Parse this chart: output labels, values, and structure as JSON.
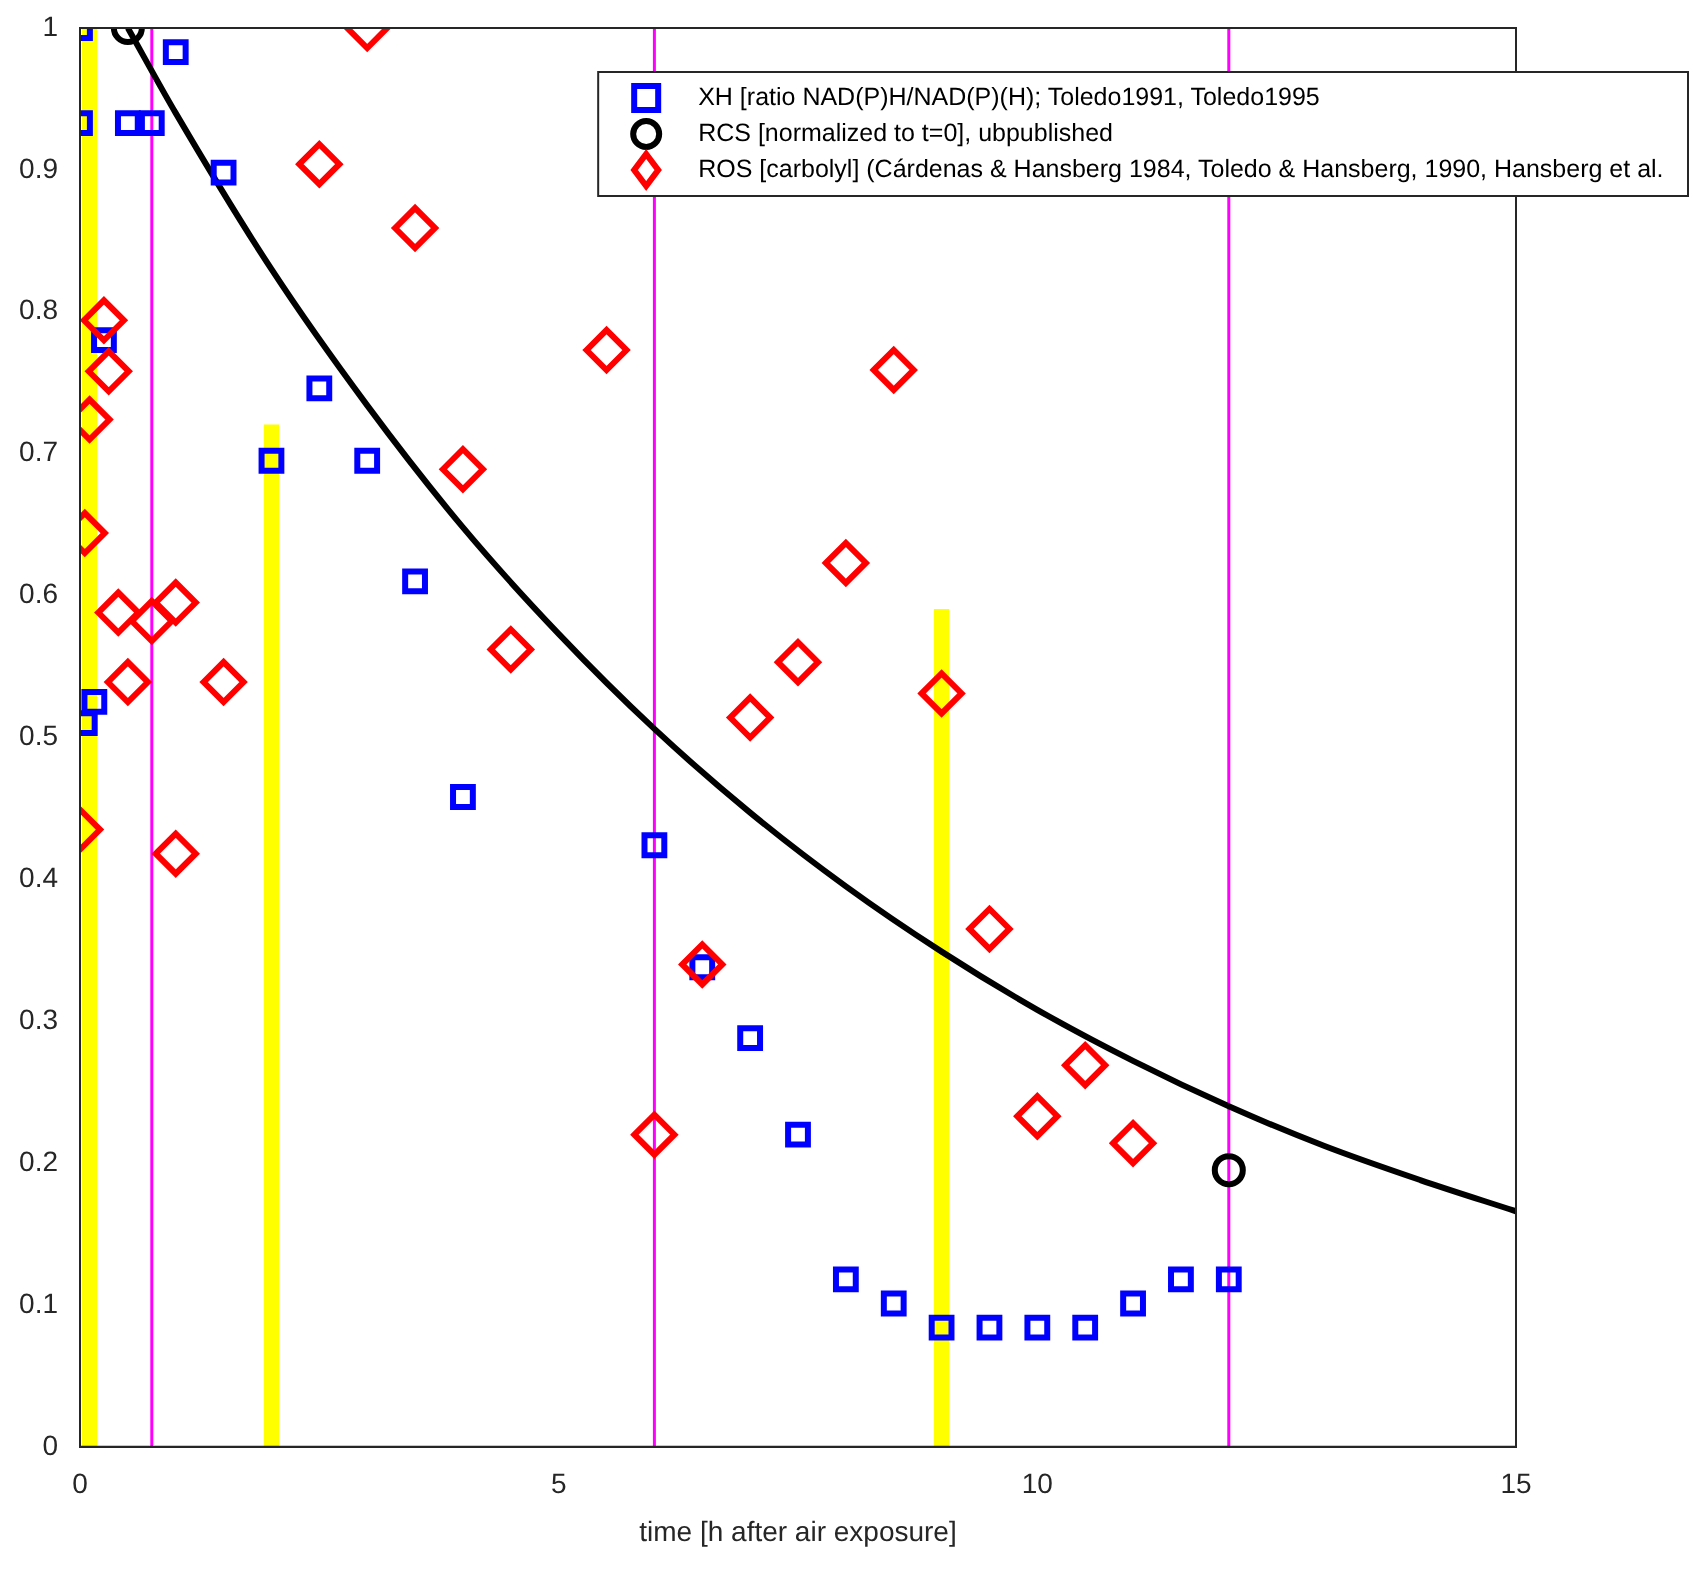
{
  "chart_data": {
    "type": "scatter",
    "xlabel": "time [h after air exposure]",
    "xlim": [
      0,
      15
    ],
    "xticks": [
      0,
      5,
      10,
      15
    ],
    "ylim": [
      0,
      1
    ],
    "yticks": [
      0,
      0.1,
      0.2,
      0.3,
      0.4,
      0.5,
      0.6,
      0.7,
      0.8,
      0.9,
      1
    ],
    "grid": false,
    "legend": "top right",
    "ref_lines": [
      {
        "axis": "x",
        "value": 0.75,
        "color": "#ff00ff"
      },
      {
        "axis": "x",
        "value": 6,
        "color": "#ff00ff"
      },
      {
        "axis": "x",
        "value": 12,
        "color": "#ff00ff"
      }
    ],
    "series": [
      {
        "type": "bar",
        "color": "#ffff00",
        "x": [
          0.1,
          2,
          9
        ],
        "values": [
          1.0,
          0.72,
          0.59
        ]
      },
      {
        "type": "line",
        "color": "#000000",
        "marker": "none",
        "line_style": "solid",
        "x": [
          0.5,
          1,
          2,
          3,
          4,
          5,
          6,
          7,
          8,
          9,
          10,
          11,
          12,
          13,
          14,
          15
        ],
        "values": [
          1.0,
          0.94,
          0.83,
          0.734,
          0.648,
          0.573,
          0.506,
          0.447,
          0.395,
          0.349,
          0.308,
          0.272,
          0.24,
          0.212,
          0.188,
          0.166
        ]
      },
      {
        "name": "XH [ratio NAD(P)H/NAD(P)(H); Toledo1991, Toledo1995",
        "color": "#0000ff",
        "marker": "square",
        "x": [
          0,
          0,
          0.05,
          0.15,
          0.25,
          0.5,
          0.75,
          1,
          1.5,
          2,
          2.5,
          3,
          3.5,
          4,
          6,
          6.5,
          7,
          7.5,
          8,
          8.5,
          9,
          9.5,
          10,
          10.5,
          11,
          11.5,
          12
        ],
        "values": [
          1.0,
          0.933,
          0.51,
          0.525,
          0.78,
          0.933,
          0.933,
          0.983,
          0.898,
          0.695,
          0.746,
          0.695,
          0.61,
          0.458,
          0.424,
          0.338,
          0.288,
          0.22,
          0.118,
          0.101,
          0.084,
          0.084,
          0.084,
          0.084,
          0.101,
          0.118,
          0.118
        ]
      },
      {
        "name": "RCS [normalized to t=0], ubpublished",
        "color": "#000000",
        "marker": "circle",
        "x": [
          0.5,
          12
        ],
        "values": [
          1.0,
          0.195
        ]
      },
      {
        "name": "ROS [carbolyl] (Cárdenas & Hansberg 1984, Toledo & Hansberg, 1990, Hansberg et al.",
        "color": "#ff0000",
        "marker": "diamond",
        "x": [
          0,
          0.05,
          0.1,
          0.25,
          0.3,
          0.4,
          0.5,
          0.75,
          1,
          1,
          1.5,
          2.5,
          3,
          3.5,
          4,
          4.5,
          5.5,
          6,
          6.5,
          7,
          7.5,
          8,
          8.5,
          9,
          9.5,
          10,
          10.5,
          11
        ],
        "values": [
          0.435,
          0.644,
          0.724,
          0.794,
          0.758,
          0.588,
          0.539,
          0.582,
          0.595,
          0.418,
          0.539,
          0.904,
          1.0,
          0.859,
          0.689,
          0.562,
          0.773,
          0.22,
          0.34,
          0.514,
          0.553,
          0.623,
          0.759,
          0.531,
          0.365,
          0.233,
          0.269,
          0.214
        ]
      }
    ]
  }
}
